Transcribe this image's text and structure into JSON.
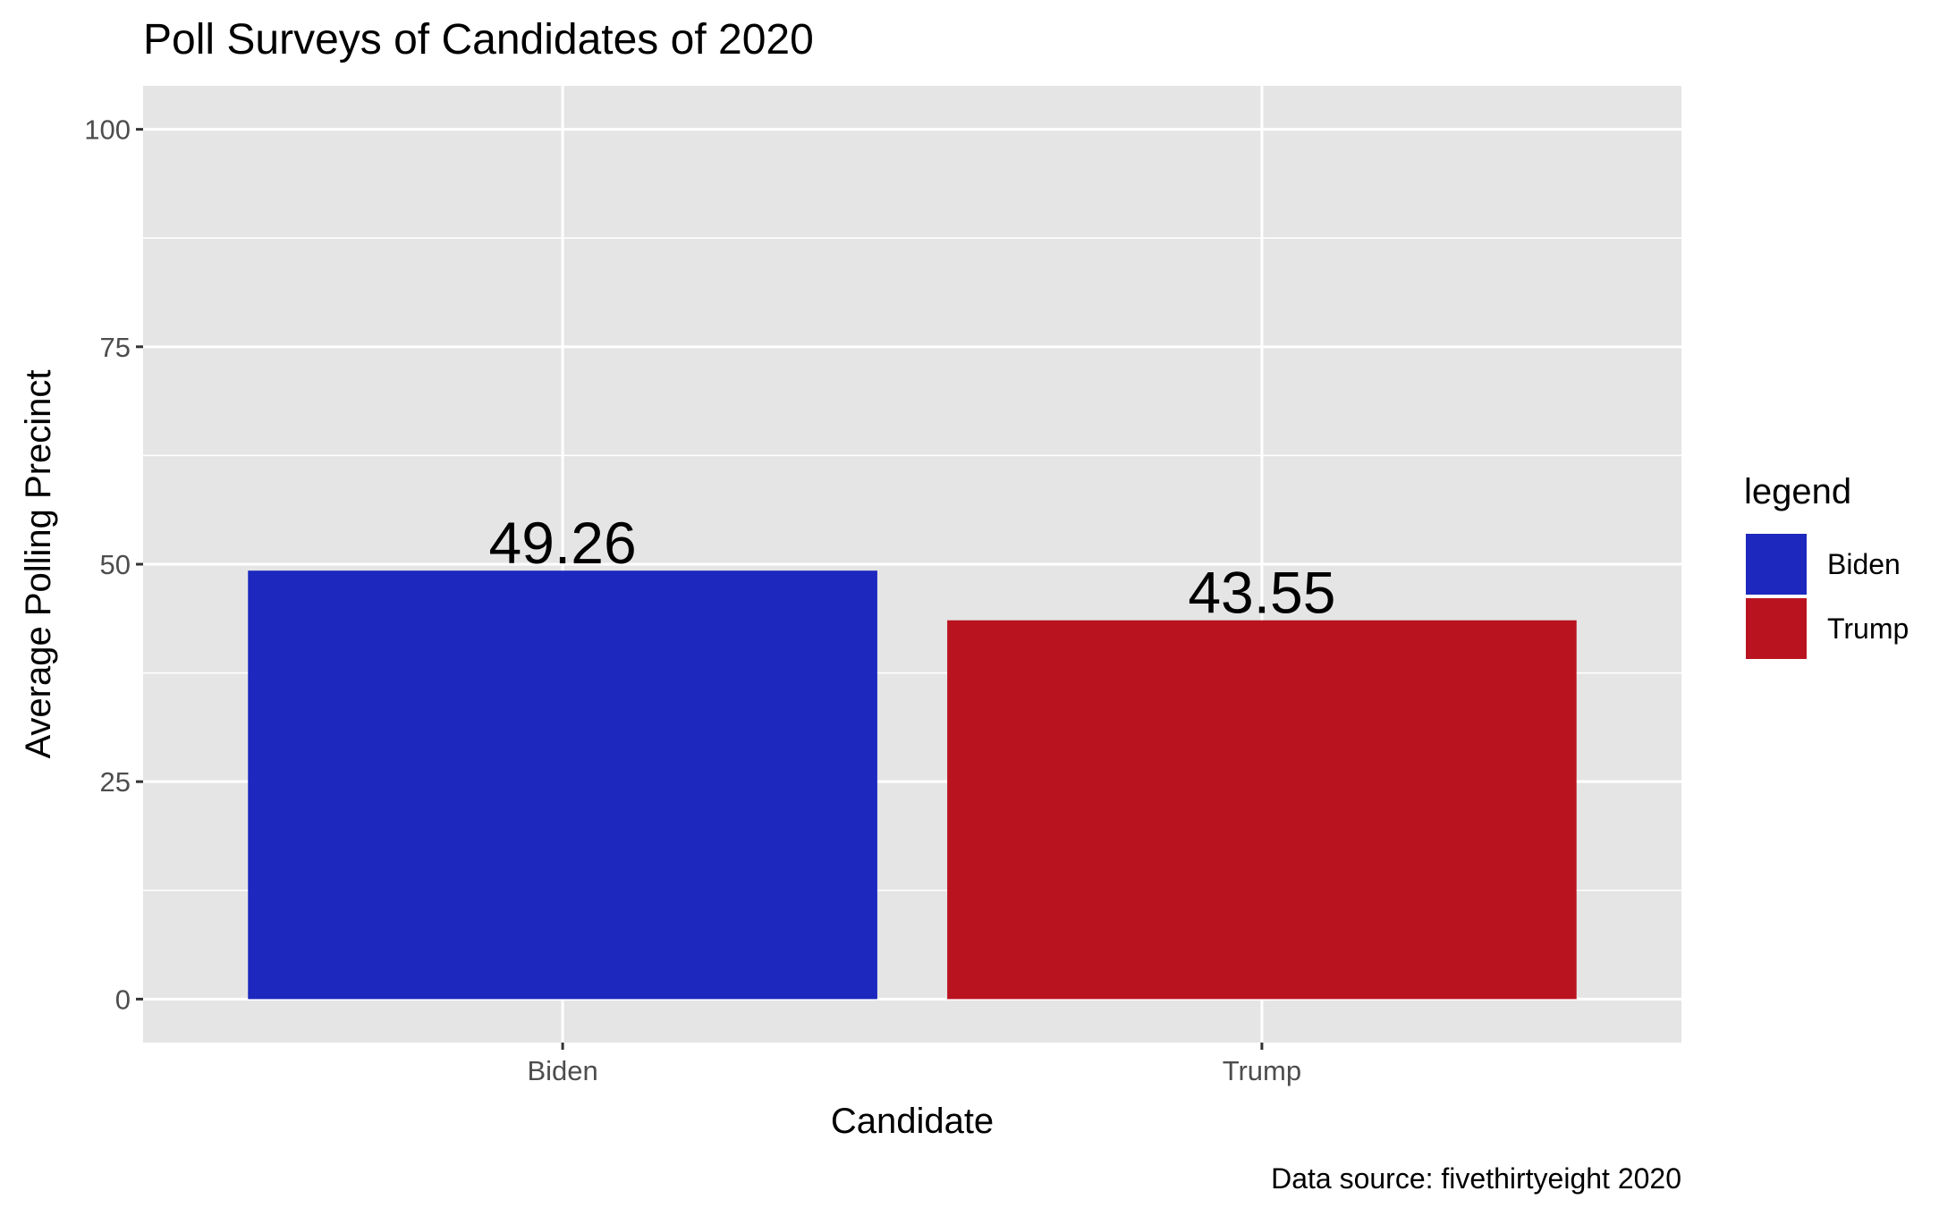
{
  "chart_data": {
    "type": "bar",
    "title": "Poll Surveys of Candidates of 2020",
    "xlabel": "Candidate",
    "ylabel": "Average Polling Precinct",
    "caption": "Data source: fivethirtyeight 2020",
    "categories": [
      "Biden",
      "Trump"
    ],
    "values": [
      49.26,
      43.55
    ],
    "data_labels": [
      "49.26",
      "43.55"
    ],
    "colors": [
      "#1c28be",
      "#ba1320"
    ],
    "ylim": [
      -5,
      105
    ],
    "yticks": [
      0,
      25,
      50,
      75,
      100
    ],
    "ytick_labels": [
      "0",
      "25",
      "50",
      "75",
      "100"
    ],
    "grid": true,
    "legend": {
      "title": "legend",
      "placement": "right",
      "entries": [
        {
          "label": "Biden",
          "color": "#1c28be"
        },
        {
          "label": "Trump",
          "color": "#ba1320"
        }
      ]
    }
  }
}
